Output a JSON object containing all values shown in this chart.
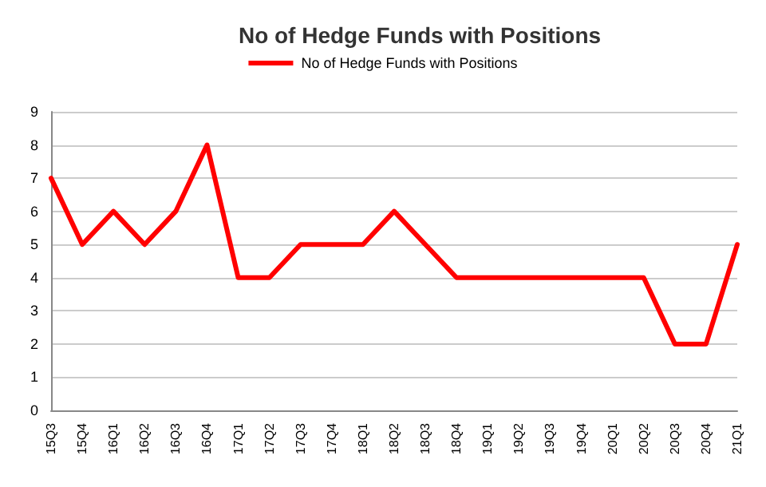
{
  "chart_data": {
    "type": "line",
    "title": "No of Hedge Funds with Positions",
    "categories": [
      "15Q3",
      "15Q4",
      "16Q1",
      "16Q2",
      "16Q3",
      "16Q4",
      "17Q1",
      "17Q2",
      "17Q3",
      "17Q4",
      "18Q1",
      "18Q2",
      "18Q3",
      "18Q4",
      "19Q1",
      "19Q2",
      "19Q3",
      "19Q4",
      "20Q1",
      "20Q2",
      "20Q3",
      "20Q4",
      "21Q1"
    ],
    "series": [
      {
        "name": "No of Hedge Funds with Positions",
        "color": "#ff0000",
        "values": [
          7,
          5,
          6,
          5,
          6,
          8,
          4,
          4,
          5,
          5,
          5,
          6,
          5,
          4,
          4,
          4,
          4,
          4,
          4,
          4,
          2,
          2,
          5
        ]
      }
    ],
    "ylim": [
      0,
      9
    ],
    "yticks": [
      0,
      1,
      2,
      3,
      4,
      5,
      6,
      7,
      8,
      9
    ],
    "grid": "y",
    "legend": "top",
    "marker": "none",
    "line_style": "solid"
  }
}
